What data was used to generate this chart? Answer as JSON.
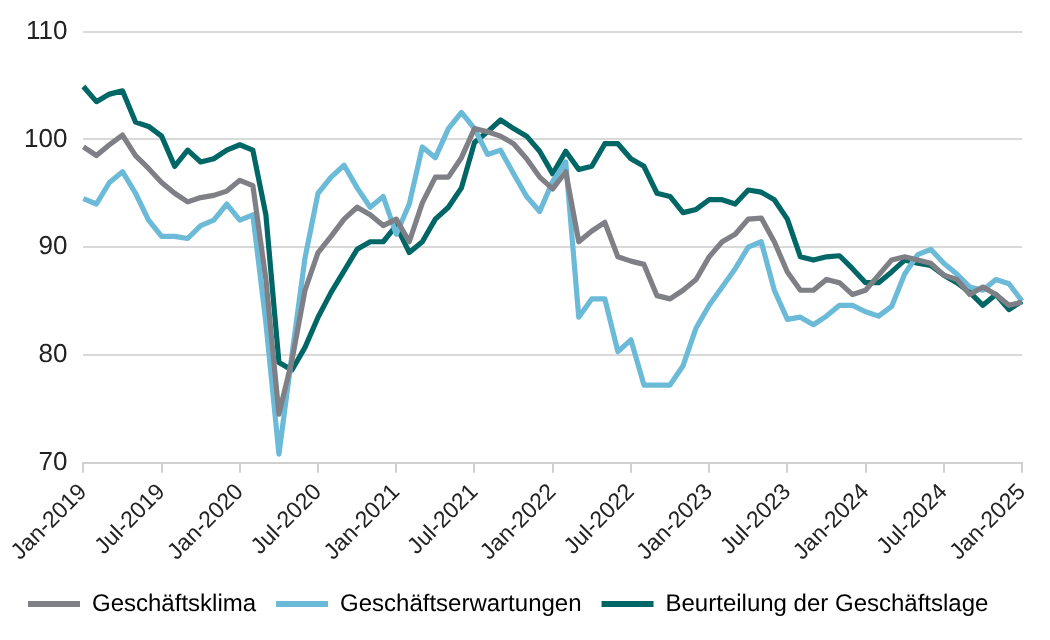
{
  "chart_data": {
    "type": "line",
    "categories": [
      "Jan-2019",
      null,
      null,
      null,
      null,
      null,
      "Jul-2019",
      null,
      null,
      null,
      null,
      null,
      "Jan-2020",
      null,
      null,
      null,
      null,
      null,
      "Jul-2020",
      null,
      null,
      null,
      null,
      null,
      "Jan-2021",
      null,
      null,
      null,
      null,
      null,
      "Jul-2021",
      null,
      null,
      null,
      null,
      null,
      "Jan-2022",
      null,
      null,
      null,
      null,
      null,
      "Jul-2022",
      null,
      null,
      null,
      null,
      null,
      "Jan-2023",
      null,
      null,
      null,
      null,
      null,
      "Jul-2023",
      null,
      null,
      null,
      null,
      null,
      "Jan-2024",
      null,
      null,
      null,
      null,
      null,
      "Jul-2024",
      null,
      null,
      null,
      null,
      null,
      "Jan-2025"
    ],
    "series": [
      {
        "name": "Geschäftsklima",
        "color": "#7f7f86",
        "values": [
          99.3,
          98.5,
          99.5,
          100.4,
          98.5,
          97.3,
          96,
          95,
          94.2,
          94.6,
          94.8,
          95.2,
          96.2,
          95.7,
          87,
          74.5,
          79.5,
          86,
          89.5,
          91,
          92.6,
          93.7,
          93,
          92,
          92.6,
          90.5,
          94.1,
          96.5,
          96.5,
          98.3,
          101,
          100.7,
          100.3,
          99.6,
          98.2,
          96.5,
          95.4,
          97,
          90.5,
          91.5,
          92.3,
          89.1,
          88.7,
          88.4,
          85.5,
          85.2,
          86,
          87,
          89.1,
          90.5,
          91.2,
          92.6,
          92.7,
          90.5,
          87.7,
          86,
          86,
          87,
          86.7,
          85.6,
          86,
          87.4,
          88.8,
          89.1,
          88.8,
          88.5,
          87.4,
          87,
          85.6,
          86.3,
          85.6,
          84.6,
          84.9
        ]
      },
      {
        "name": "Geschäftserwartungen",
        "color": "#6bbad8",
        "values": [
          94.5,
          94,
          96,
          97,
          95,
          92.5,
          91,
          91,
          90.8,
          92,
          92.5,
          94,
          92.5,
          93,
          83,
          70.8,
          80,
          89,
          95,
          96.5,
          97.6,
          95.5,
          93.7,
          94.7,
          91.2,
          94,
          99.3,
          98.3,
          101,
          102.5,
          101,
          98.6,
          99,
          96.8,
          94.7,
          93.3,
          96.1,
          97.9,
          83.5,
          85.2,
          85.2,
          80.3,
          81.4,
          77.2,
          77.2,
          77.2,
          79,
          82.5,
          84.6,
          86.3,
          88,
          90,
          90.5,
          86,
          83.3,
          83.5,
          82.8,
          83.6,
          84.6,
          84.6,
          84,
          83.6,
          84.5,
          87.5,
          89.3,
          89.8,
          88.5,
          87.5,
          86.3,
          86,
          87,
          86.6,
          85
        ]
      },
      {
        "name": "Beurteilung der Geschäftslage",
        "color": "#006666",
        "values": [
          104.9,
          103.5,
          104.2,
          104.5,
          101.6,
          101.2,
          100.3,
          97.5,
          99,
          97.9,
          98.2,
          99,
          99.5,
          99,
          93,
          79.3,
          78.6,
          80.7,
          83.5,
          85.8,
          87.8,
          89.8,
          90.5,
          90.5,
          92,
          89.5,
          90.5,
          92.6,
          93.7,
          95.5,
          99.7,
          100.7,
          101.8,
          101,
          100.3,
          98.9,
          96.8,
          98.9,
          97.2,
          97.5,
          99.6,
          99.6,
          98.2,
          97.5,
          95,
          94.7,
          93.2,
          93.5,
          94.4,
          94.4,
          94,
          95.3,
          95.1,
          94.4,
          92.6,
          89.1,
          88.8,
          89.1,
          89.2,
          88,
          86.7,
          86.7,
          87.7,
          88.8,
          88.5,
          88.3,
          87.4,
          86.7,
          85.8,
          84.6,
          85.6,
          84.2,
          85
        ]
      }
    ],
    "ylim": [
      70,
      110
    ],
    "yticks": [
      70,
      80,
      90,
      100,
      110
    ],
    "grid": "y",
    "legend": "bottom",
    "marker": "none",
    "line_style": "solid"
  }
}
